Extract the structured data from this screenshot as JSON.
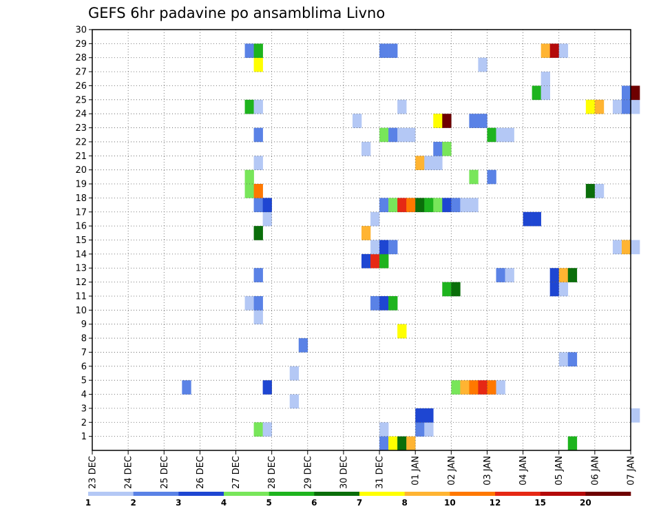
{
  "chart_data": {
    "type": "heatmap",
    "title": "GEFS 6hr padavine po ansamblima Livno",
    "xlabel": "",
    "ylabel": "",
    "x_start": "2020-12-23T00",
    "x_end": "2021-01-07T00",
    "x_tick_labels": [
      "23 DEC",
      "24 DEC",
      "25 DEC",
      "26 DEC",
      "27 DEC",
      "28 DEC",
      "29 DEC",
      "30 DEC",
      "31 DEC",
      "01 JAN",
      "02 JAN",
      "03 JAN",
      "04 JAN",
      "05 JAN",
      "06 JAN",
      "07 JAN"
    ],
    "y_tick_labels": [
      "1",
      "2",
      "3",
      "4",
      "5",
      "6",
      "7",
      "8",
      "9",
      "10",
      "11",
      "12",
      "13",
      "14",
      "15",
      "16",
      "17",
      "18",
      "19",
      "20",
      "21",
      "22",
      "23",
      "24",
      "25",
      "26",
      "27",
      "28",
      "29",
      "30"
    ],
    "grid": true,
    "colorbar": {
      "colors": [
        "#b4c8f5",
        "#5a82e6",
        "#1e46d2",
        "#78e65a",
        "#1eb41e",
        "#0a6e0a",
        "#ffff00",
        "#ffb432",
        "#ff7800",
        "#e62814",
        "#b40a0a",
        "#6e0000"
      ],
      "labels": [
        "1",
        "2",
        "3",
        "4",
        "5",
        "6",
        "7",
        "8",
        "10",
        "12",
        "15",
        "20"
      ]
    },
    "cells": [
      [
        "2020-12-27T12",
        1,
        4
      ],
      [
        "2020-12-27T18",
        1,
        1
      ],
      [
        "2020-12-31T00",
        1,
        1
      ],
      [
        "2021-01-01T00",
        1,
        2
      ],
      [
        "2021-01-01T06",
        1,
        1
      ],
      [
        "2021-01-01T00",
        2,
        3
      ],
      [
        "2021-01-01T06",
        2,
        3
      ],
      [
        "2021-01-07T00",
        2,
        1
      ],
      [
        "2020-12-28T12",
        3,
        1
      ],
      [
        "2020-12-25T12",
        4,
        2
      ],
      [
        "2020-12-27T18",
        4,
        3
      ],
      [
        "2021-01-02T00",
        4,
        4
      ],
      [
        "2021-01-02T06",
        4,
        8
      ],
      [
        "2021-01-02T12",
        4,
        10
      ],
      [
        "2021-01-02T18",
        4,
        12
      ],
      [
        "2021-01-03T00",
        4,
        10
      ],
      [
        "2021-01-03T06",
        4,
        1
      ],
      [
        "2020-12-28T12",
        5,
        1
      ],
      [
        "2021-01-05T00",
        6,
        1
      ],
      [
        "2021-01-05T06",
        6,
        2
      ],
      [
        "2020-12-28T18",
        7,
        2
      ],
      [
        "2020-12-31T12",
        8,
        7
      ],
      [
        "2020-12-27T12",
        9,
        1
      ],
      [
        "2020-12-27T06",
        10,
        1
      ],
      [
        "2020-12-27T12",
        10,
        2
      ],
      [
        "2020-12-30T18",
        10,
        2
      ],
      [
        "2020-12-31T00",
        10,
        3
      ],
      [
        "2020-12-31T06",
        10,
        5
      ],
      [
        "2021-01-01T18",
        11,
        5
      ],
      [
        "2021-01-02T00",
        11,
        6
      ],
      [
        "2021-01-04T18",
        11,
        3
      ],
      [
        "2021-01-05T00",
        11,
        1
      ],
      [
        "2020-12-27T12",
        12,
        2
      ],
      [
        "2021-01-03T06",
        12,
        2
      ],
      [
        "2021-01-03T12",
        12,
        1
      ],
      [
        "2021-01-04T18",
        12,
        3
      ],
      [
        "2021-01-05T00",
        12,
        8
      ],
      [
        "2021-01-05T06",
        12,
        6
      ],
      [
        "2020-12-30T12",
        13,
        3
      ],
      [
        "2020-12-30T18",
        13,
        12
      ],
      [
        "2020-12-31T00",
        13,
        5
      ],
      [
        "2020-12-30T18",
        14,
        1
      ],
      [
        "2020-12-31T00",
        14,
        3
      ],
      [
        "2020-12-31T06",
        14,
        2
      ],
      [
        "2021-01-06T12",
        14,
        1
      ],
      [
        "2021-01-06T18",
        14,
        8
      ],
      [
        "2021-01-07T00",
        14,
        1
      ],
      [
        "2020-12-30T12",
        15,
        8
      ],
      [
        "2020-12-27T12",
        15,
        6
      ],
      [
        "2020-12-27T18",
        16,
        1
      ],
      [
        "2020-12-30T18",
        16,
        1
      ],
      [
        "2021-01-04T00",
        16,
        3
      ],
      [
        "2021-01-04T06",
        16,
        3
      ],
      [
        "2020-12-27T12",
        17,
        2
      ],
      [
        "2020-12-27T18",
        17,
        3
      ],
      [
        "2020-12-31T00",
        17,
        2
      ],
      [
        "2020-12-31T06",
        17,
        4
      ],
      [
        "2020-12-31T12",
        17,
        12
      ],
      [
        "2020-12-31T18",
        17,
        10
      ],
      [
        "2021-01-01T00",
        17,
        6
      ],
      [
        "2021-01-01T06",
        17,
        5
      ],
      [
        "2021-01-01T12",
        17,
        4
      ],
      [
        "2021-01-01T18",
        17,
        3
      ],
      [
        "2021-01-02T00",
        17,
        2
      ],
      [
        "2021-01-02T06",
        17,
        1
      ],
      [
        "2021-01-02T12",
        17,
        1
      ],
      [
        "2020-12-27T06",
        18,
        4
      ],
      [
        "2020-12-27T12",
        18,
        10
      ],
      [
        "2021-01-05T18",
        18,
        6
      ],
      [
        "2021-01-06T00",
        18,
        1
      ],
      [
        "2020-12-27T06",
        19,
        4
      ],
      [
        "2021-01-02T12",
        19,
        4
      ],
      [
        "2021-01-03T00",
        19,
        2
      ],
      [
        "2021-01-01T00",
        20,
        8
      ],
      [
        "2021-01-01T06",
        20,
        1
      ],
      [
        "2021-01-01T12",
        20,
        1
      ],
      [
        "2020-12-27T12",
        20,
        1
      ],
      [
        "2020-12-30T12",
        21,
        1
      ],
      [
        "2021-01-01T12",
        21,
        2
      ],
      [
        "2021-01-01T18",
        21,
        4
      ],
      [
        "2020-12-27T12",
        22,
        2
      ],
      [
        "2020-12-31T00",
        22,
        4
      ],
      [
        "2020-12-31T06",
        22,
        2
      ],
      [
        "2020-12-31T12",
        22,
        1
      ],
      [
        "2020-12-31T18",
        22,
        1
      ],
      [
        "2021-01-03T00",
        22,
        5
      ],
      [
        "2021-01-03T06",
        22,
        1
      ],
      [
        "2021-01-03T12",
        22,
        1
      ],
      [
        "2020-12-30T06",
        23,
        1
      ],
      [
        "2021-01-01T12",
        23,
        7
      ],
      [
        "2021-01-01T18",
        23,
        20
      ],
      [
        "2021-01-02T12",
        23,
        2
      ],
      [
        "2021-01-02T18",
        23,
        2
      ],
      [
        "2020-12-27T06",
        24,
        5
      ],
      [
        "2020-12-27T12",
        24,
        1
      ],
      [
        "2020-12-31T12",
        24,
        1
      ],
      [
        "2021-01-05T18",
        24,
        7
      ],
      [
        "2021-01-06T00",
        24,
        8
      ],
      [
        "2021-01-06T12",
        24,
        1
      ],
      [
        "2021-01-06T18",
        24,
        2
      ],
      [
        "2021-01-07T00",
        24,
        1
      ],
      [
        "2021-01-04T06",
        25,
        5
      ],
      [
        "2021-01-04T12",
        25,
        1
      ],
      [
        "2021-01-06T18",
        25,
        2
      ],
      [
        "2021-01-07T00",
        25,
        20
      ],
      [
        "2021-01-04T12",
        26,
        1
      ],
      [
        "2020-12-27T12",
        27,
        7
      ],
      [
        "2021-01-02T18",
        27,
        1
      ],
      [
        "2020-12-27T06",
        28,
        2
      ],
      [
        "2020-12-27T12",
        28,
        5
      ],
      [
        "2020-12-31T00",
        28,
        2
      ],
      [
        "2020-12-31T06",
        28,
        2
      ],
      [
        "2021-01-04T12",
        28,
        8
      ],
      [
        "2021-01-04T18",
        28,
        15
      ],
      [
        "2021-01-05T00",
        28,
        1
      ],
      [
        "2020-12-31T00",
        0,
        2
      ],
      [
        "2020-12-31T06",
        0,
        7
      ],
      [
        "2020-12-31T12",
        0,
        6
      ],
      [
        "2020-12-31T18",
        0,
        8
      ],
      [
        "2021-01-05T06",
        0,
        5
      ]
    ]
  }
}
